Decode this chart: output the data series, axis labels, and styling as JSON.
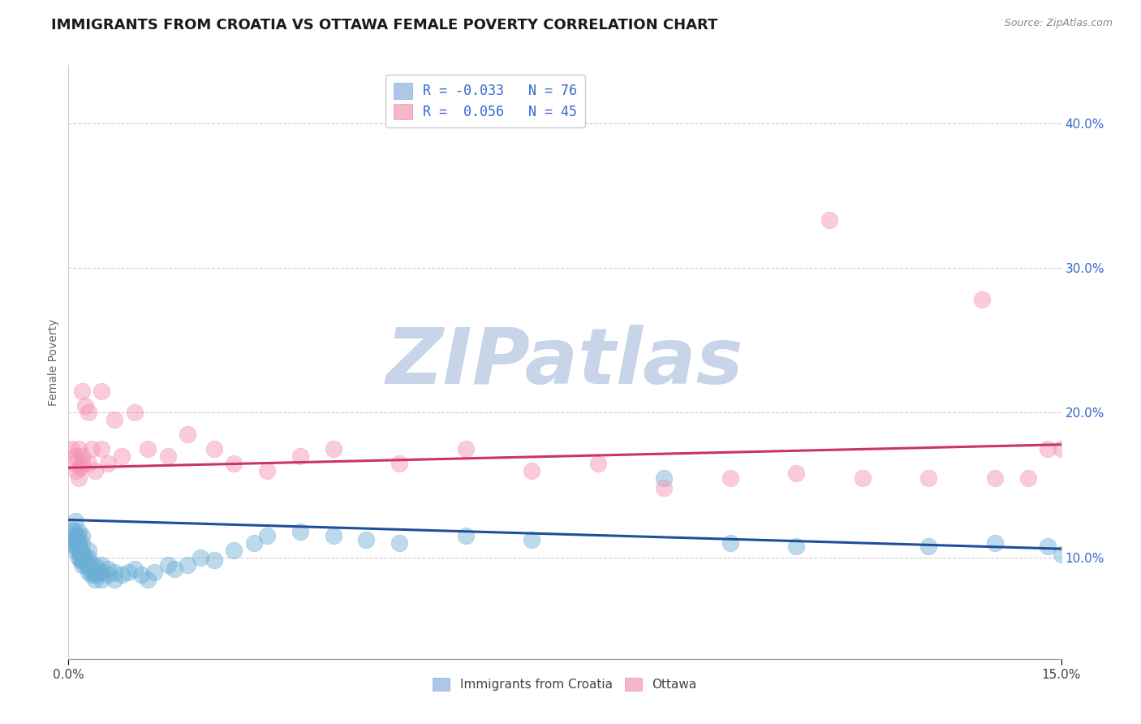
{
  "title": "IMMIGRANTS FROM CROATIA VS OTTAWA FEMALE POVERTY CORRELATION CHART",
  "source_text": "Source: ZipAtlas.com",
  "ylabel": "Female Poverty",
  "xlim": [
    0.0,
    0.15
  ],
  "ylim": [
    0.03,
    0.44
  ],
  "watermark": "ZIPatlas",
  "watermark_color": "#c8d4e8",
  "blue_color": "#6baed6",
  "pink_color": "#f48fb1",
  "trendline_blue_color": "#1f4e9c",
  "trendline_pink_color": "#cc3366",
  "blue_trend_x": [
    0.0,
    0.15
  ],
  "blue_trend_y": [
    0.126,
    0.106
  ],
  "pink_trend_x": [
    0.0,
    0.15
  ],
  "pink_trend_y": [
    0.162,
    0.178
  ],
  "bg_color": "#ffffff",
  "grid_color": "#b8b8b8",
  "title_fontsize": 13,
  "axis_label_fontsize": 10,
  "tick_fontsize": 11,
  "blue_scatter": {
    "x": [
      0.0005,
      0.0005,
      0.0008,
      0.001,
      0.001,
      0.001,
      0.001,
      0.001,
      0.001,
      0.0012,
      0.0013,
      0.0014,
      0.0015,
      0.0015,
      0.0015,
      0.0015,
      0.0016,
      0.0016,
      0.0018,
      0.0018,
      0.002,
      0.002,
      0.002,
      0.002,
      0.002,
      0.0022,
      0.0022,
      0.0025,
      0.0025,
      0.003,
      0.003,
      0.003,
      0.003,
      0.0032,
      0.0035,
      0.0035,
      0.0038,
      0.004,
      0.004,
      0.004,
      0.0042,
      0.0045,
      0.005,
      0.005,
      0.005,
      0.006,
      0.006,
      0.007,
      0.007,
      0.008,
      0.009,
      0.01,
      0.011,
      0.012,
      0.013,
      0.015,
      0.016,
      0.018,
      0.02,
      0.022,
      0.025,
      0.028,
      0.03,
      0.035,
      0.04,
      0.045,
      0.05,
      0.06,
      0.07,
      0.09,
      0.1,
      0.11,
      0.13,
      0.14,
      0.148,
      0.15
    ],
    "y": [
      0.12,
      0.115,
      0.118,
      0.105,
      0.108,
      0.11,
      0.112,
      0.115,
      0.125,
      0.108,
      0.112,
      0.115,
      0.105,
      0.108,
      0.11,
      0.118,
      0.1,
      0.105,
      0.098,
      0.102,
      0.095,
      0.1,
      0.105,
      0.11,
      0.115,
      0.098,
      0.102,
      0.095,
      0.1,
      0.09,
      0.095,
      0.1,
      0.105,
      0.092,
      0.088,
      0.095,
      0.09,
      0.085,
      0.09,
      0.095,
      0.088,
      0.092,
      0.085,
      0.09,
      0.095,
      0.088,
      0.092,
      0.085,
      0.09,
      0.088,
      0.09,
      0.092,
      0.088,
      0.085,
      0.09,
      0.095,
      0.092,
      0.095,
      0.1,
      0.098,
      0.105,
      0.11,
      0.115,
      0.118,
      0.115,
      0.112,
      0.11,
      0.115,
      0.112,
      0.155,
      0.11,
      0.108,
      0.108,
      0.11,
      0.108,
      0.102
    ]
  },
  "pink_scatter": {
    "x": [
      0.0005,
      0.001,
      0.001,
      0.0012,
      0.0015,
      0.0015,
      0.0018,
      0.002,
      0.002,
      0.002,
      0.0025,
      0.003,
      0.003,
      0.0035,
      0.004,
      0.005,
      0.005,
      0.006,
      0.007,
      0.008,
      0.01,
      0.012,
      0.015,
      0.018,
      0.022,
      0.025,
      0.03,
      0.035,
      0.04,
      0.05,
      0.06,
      0.07,
      0.08,
      0.09,
      0.1,
      0.11,
      0.115,
      0.12,
      0.13,
      0.138,
      0.14,
      0.145,
      0.148,
      0.15,
      0.152
    ],
    "y": [
      0.175,
      0.165,
      0.17,
      0.16,
      0.155,
      0.175,
      0.162,
      0.165,
      0.17,
      0.215,
      0.205,
      0.2,
      0.165,
      0.175,
      0.16,
      0.215,
      0.175,
      0.165,
      0.195,
      0.17,
      0.2,
      0.175,
      0.17,
      0.185,
      0.175,
      0.165,
      0.16,
      0.17,
      0.175,
      0.165,
      0.175,
      0.16,
      0.165,
      0.148,
      0.155,
      0.158,
      0.333,
      0.155,
      0.155,
      0.278,
      0.155,
      0.155,
      0.175,
      0.175,
      0.17
    ]
  }
}
